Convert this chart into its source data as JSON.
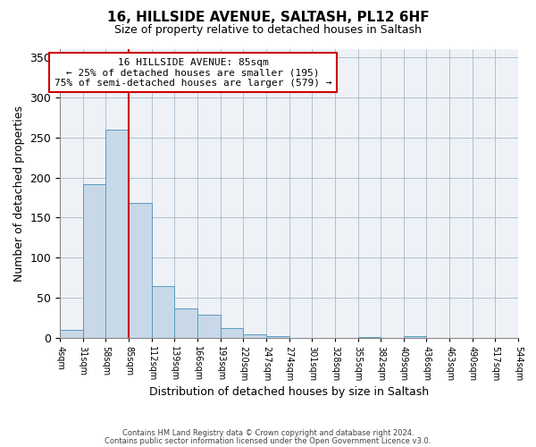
{
  "title": "16, HILLSIDE AVENUE, SALTASH, PL12 6HF",
  "subtitle": "Size of property relative to detached houses in Saltash",
  "xlabel": "Distribution of detached houses by size in Saltash",
  "ylabel": "Number of detached properties",
  "bar_values": [
    10,
    192,
    260,
    168,
    65,
    37,
    29,
    12,
    5,
    2,
    0,
    0,
    0,
    1,
    0,
    2,
    0,
    0,
    0,
    0
  ],
  "bin_labels": [
    "4sqm",
    "31sqm",
    "58sqm",
    "85sqm",
    "112sqm",
    "139sqm",
    "166sqm",
    "193sqm",
    "220sqm",
    "247sqm",
    "274sqm",
    "301sqm",
    "328sqm",
    "355sqm",
    "382sqm",
    "409sqm",
    "436sqm",
    "463sqm",
    "490sqm",
    "517sqm",
    "544sqm"
  ],
  "bar_color": "#c8d8e8",
  "bar_edgecolor": "#5a9abf",
  "vline_x": 3,
  "vline_color": "#cc0000",
  "ylim": [
    0,
    360
  ],
  "yticks": [
    0,
    50,
    100,
    150,
    200,
    250,
    300,
    350
  ],
  "annotation_title": "16 HILLSIDE AVENUE: 85sqm",
  "annotation_line1": "← 25% of detached houses are smaller (195)",
  "annotation_line2": "75% of semi-detached houses are larger (579) →",
  "annotation_box_color": "#ffffff",
  "annotation_box_edgecolor": "#cc0000",
  "footer1": "Contains HM Land Registry data © Crown copyright and database right 2024.",
  "footer2": "Contains public sector information licensed under the Open Government Licence v3.0.",
  "background_color": "#eef2f7"
}
